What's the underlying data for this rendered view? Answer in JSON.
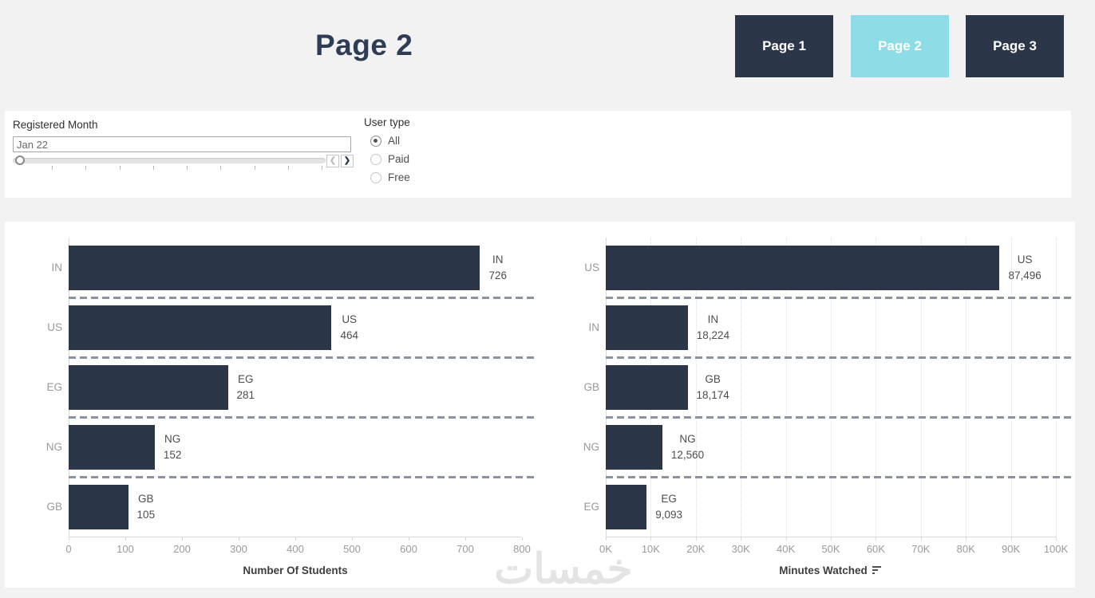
{
  "page": {
    "title": "Page 2",
    "watermark": "خمسات"
  },
  "nav": {
    "buttons": [
      {
        "label": "Page 1",
        "active": false
      },
      {
        "label": "Page 2",
        "active": true
      },
      {
        "label": "Page 3",
        "active": false
      }
    ]
  },
  "filters": {
    "registered_month": {
      "label": "Registered Month",
      "value": "Jan 22",
      "prev_icon": "❮",
      "next_icon": "❯"
    },
    "user_type": {
      "label": "User type",
      "options": [
        {
          "label": "All",
          "selected": true
        },
        {
          "label": "Paid",
          "selected": false
        },
        {
          "label": "Free",
          "selected": false
        }
      ]
    }
  },
  "colors": {
    "navy": "#2b3648",
    "cyan": "#8edce6",
    "page_bg": "#f1f2f1",
    "card_bg": "#ffffff",
    "separator": "#8a93a0",
    "axis_text": "#9a9a9a",
    "label_text": "#4d4d4d"
  },
  "chart_data": [
    {
      "type": "bar",
      "orientation": "horizontal",
      "xlabel": "Number Of Students",
      "categories": [
        "IN",
        "US",
        "EG",
        "NG",
        "GB"
      ],
      "values": [
        726,
        464,
        281,
        152,
        105
      ],
      "value_labels": [
        "726",
        "464",
        "281",
        "152",
        "105"
      ],
      "xlim": [
        0,
        800
      ],
      "xticks": [
        0,
        100,
        200,
        300,
        400,
        500,
        600,
        700,
        800
      ],
      "xtick_labels": [
        "0",
        "100",
        "200",
        "300",
        "400",
        "500",
        "600",
        "700",
        "800"
      ],
      "grid": false,
      "sort_icon": false
    },
    {
      "type": "bar",
      "orientation": "horizontal",
      "xlabel": "Minutes Watched",
      "categories": [
        "US",
        "IN",
        "GB",
        "NG",
        "EG"
      ],
      "values": [
        87496,
        18224,
        18174,
        12560,
        9093
      ],
      "value_labels": [
        "87,496",
        "18,224",
        "18,174",
        "12,560",
        "9,093"
      ],
      "xlim": [
        0,
        100000
      ],
      "xticks": [
        0,
        10000,
        20000,
        30000,
        40000,
        50000,
        60000,
        70000,
        80000,
        90000,
        100000
      ],
      "xtick_labels": [
        "0K",
        "10K",
        "20K",
        "30K",
        "40K",
        "50K",
        "60K",
        "70K",
        "80K",
        "90K",
        "100K"
      ],
      "grid": true,
      "sort_icon": true
    }
  ]
}
